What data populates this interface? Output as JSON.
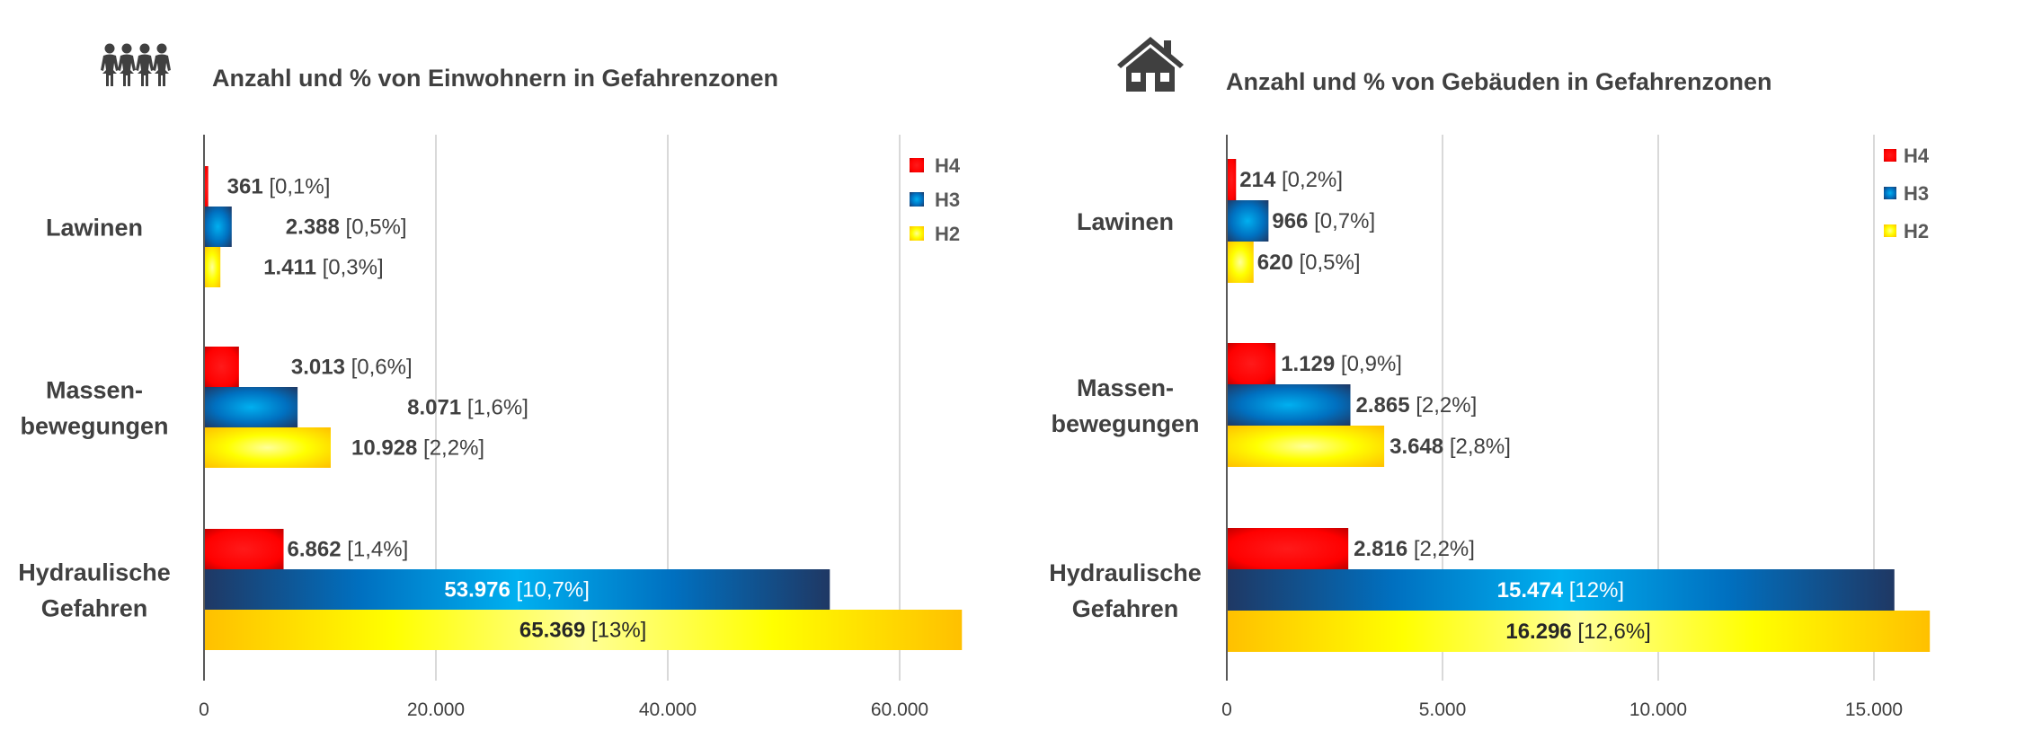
{
  "colors": {
    "H4": "#ff0000",
    "H3": "#0070c0",
    "H2": "#ffff00",
    "text": "#404040",
    "grid": "#d9d9d9",
    "axis": "#595959"
  },
  "icons": {
    "left": "people-group-icon",
    "right": "house-icon"
  },
  "chart_data": [
    {
      "type": "bar",
      "orientation": "horizontal",
      "title": "Anzahl und % von Einwohnern in Gefahrenzonen",
      "categories": [
        "Lawinen",
        "Massen-\nbewegungen",
        "Hydraulische\nGefahren"
      ],
      "category_lines": [
        [
          "Lawinen"
        ],
        [
          "Massen-",
          "bewegungen"
        ],
        [
          "Hydraulische",
          "Gefahren"
        ]
      ],
      "xlim": [
        0,
        65369
      ],
      "xticks": [
        0,
        20000,
        40000,
        60000
      ],
      "xtick_labels": [
        "0",
        "20.000",
        "40.000",
        "60.000"
      ],
      "grid": true,
      "legend": "top-right",
      "series": [
        {
          "name": "H4",
          "values": [
            361,
            3013,
            6862
          ],
          "value_labels": [
            "361",
            "3.013",
            "6.862"
          ],
          "pct_labels": [
            "[0,1%]",
            "[0,6%]",
            "[1,4%]"
          ]
        },
        {
          "name": "H3",
          "values": [
            2388,
            8071,
            53976
          ],
          "value_labels": [
            "2.388",
            "8.071",
            "53.976"
          ],
          "pct_labels": [
            "[0,5%]",
            "[1,6%]",
            "[10,7%]"
          ]
        },
        {
          "name": "H2",
          "values": [
            1411,
            10928,
            65369
          ],
          "value_labels": [
            "1.411",
            "10.928",
            "65.369"
          ],
          "pct_labels": [
            "[0,3%]",
            "[2,2%]",
            "[13%]"
          ]
        }
      ]
    },
    {
      "type": "bar",
      "orientation": "horizontal",
      "title": "Anzahl und % von Gebäuden in Gefahrenzonen",
      "categories": [
        "Lawinen",
        "Massen-\nbewegungen",
        "Hydraulische\nGefahren"
      ],
      "category_lines": [
        [
          "Lawinen"
        ],
        [
          "Massen-",
          "bewegungen"
        ],
        [
          "Hydraulische",
          "Gefahren"
        ]
      ],
      "xlim": [
        0,
        16296
      ],
      "xticks": [
        0,
        5000,
        10000,
        15000
      ],
      "xtick_labels": [
        "0",
        "5.000",
        "10.000",
        "15.000"
      ],
      "grid": true,
      "legend": "top-right",
      "series": [
        {
          "name": "H4",
          "values": [
            214,
            1129,
            2816
          ],
          "value_labels": [
            "214",
            "1.129",
            "2.816"
          ],
          "pct_labels": [
            "[0,2%]",
            "[0,9%]",
            "[2,2%]"
          ]
        },
        {
          "name": "H3",
          "values": [
            966,
            2865,
            15474
          ],
          "value_labels": [
            "966",
            "2.865",
            "15.474"
          ],
          "pct_labels": [
            "[0,7%]",
            "[2,2%]",
            "[12%]"
          ]
        },
        {
          "name": "H2",
          "values": [
            620,
            3648,
            16296
          ],
          "value_labels": [
            "620",
            "3.648",
            "16.296"
          ],
          "pct_labels": [
            "[0,5%]",
            "[2,8%]",
            "[12,6%]"
          ]
        }
      ]
    }
  ]
}
